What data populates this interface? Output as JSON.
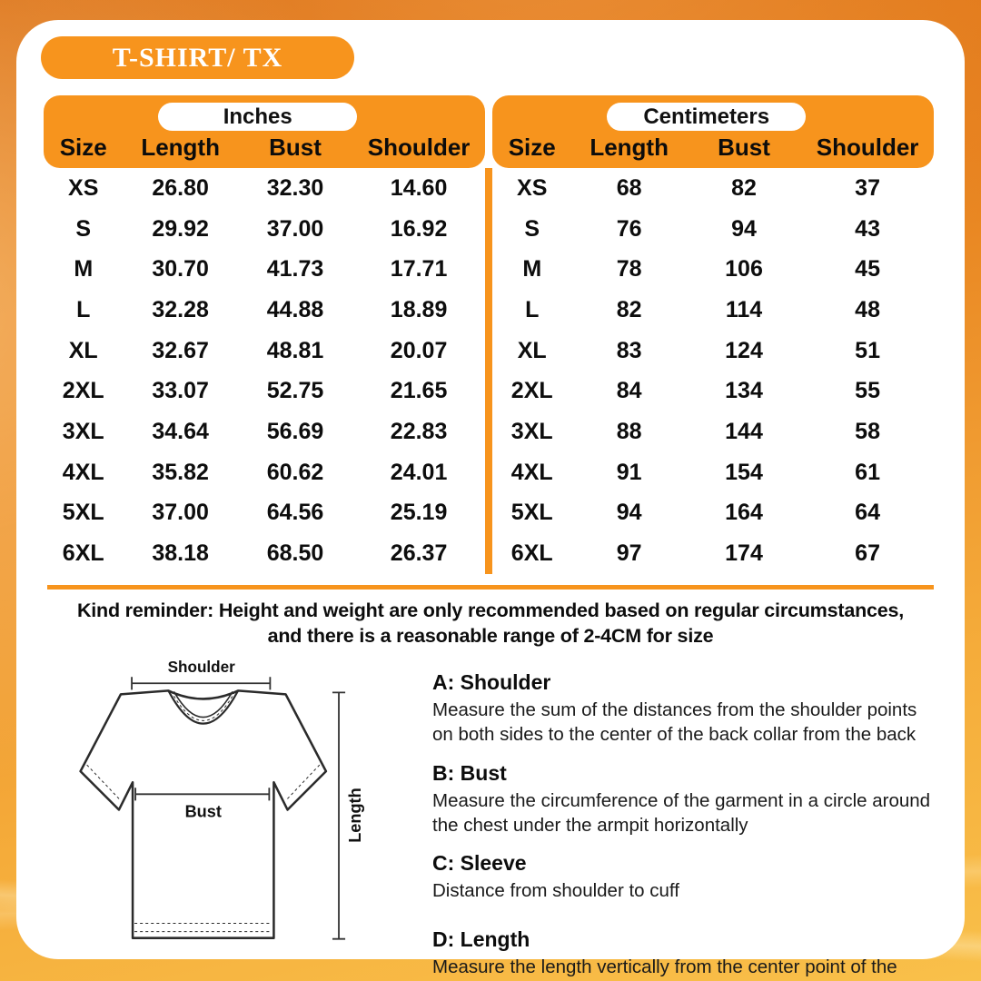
{
  "title": "T-SHIRT/ TX",
  "table": {
    "inches_label": "Inches",
    "cm_label": "Centimeters",
    "columns": [
      "Size",
      "Length",
      "Bust",
      "Shoulder"
    ],
    "inches_rows": [
      [
        "XS",
        "26.80",
        "32.30",
        "14.60"
      ],
      [
        "S",
        "29.92",
        "37.00",
        "16.92"
      ],
      [
        "M",
        "30.70",
        "41.73",
        "17.71"
      ],
      [
        "L",
        "32.28",
        "44.88",
        "18.89"
      ],
      [
        "XL",
        "32.67",
        "48.81",
        "20.07"
      ],
      [
        "2XL",
        "33.07",
        "52.75",
        "21.65"
      ],
      [
        "3XL",
        "34.64",
        "56.69",
        "22.83"
      ],
      [
        "4XL",
        "35.82",
        "60.62",
        "24.01"
      ],
      [
        "5XL",
        "37.00",
        "64.56",
        "25.19"
      ],
      [
        "6XL",
        "38.18",
        "68.50",
        "26.37"
      ]
    ],
    "cm_rows": [
      [
        "XS",
        "68",
        "82",
        "37"
      ],
      [
        "S",
        "76",
        "94",
        "43"
      ],
      [
        "M",
        "78",
        "106",
        "45"
      ],
      [
        "L",
        "82",
        "114",
        "48"
      ],
      [
        "XL",
        "83",
        "124",
        "51"
      ],
      [
        "2XL",
        "84",
        "134",
        "55"
      ],
      [
        "3XL",
        "88",
        "144",
        "58"
      ],
      [
        "4XL",
        "91",
        "154",
        "61"
      ],
      [
        "5XL",
        "94",
        "164",
        "64"
      ],
      [
        "6XL",
        "97",
        "174",
        "67"
      ]
    ]
  },
  "reminder": {
    "line1": "Kind reminder: Height and weight are only recommended based on regular circumstances,",
    "line2": "and there is a reasonable range of 2-4CM for size"
  },
  "diagram": {
    "shoulder_label": "Shoulder",
    "bust_label": "Bust",
    "length_label": "Length"
  },
  "guide": [
    {
      "heading": "A: Shoulder",
      "body": "Measure the sum of the distances from the shoulder points on both sides to the center of the back collar from the back"
    },
    {
      "heading": "B: Bust",
      "body": "Measure the circumference of the garment in a circle around the chest under the armpit horizontally"
    },
    {
      "heading": "C: Sleeve",
      "body": "Distance from shoulder to cuff"
    },
    {
      "heading": "D: Length",
      "body": "Measure the length vertically from the center point of the seam between the back collar and the garment to the edge of the hem"
    }
  ],
  "colors": {
    "accent": "#F7941D",
    "text": "#0d0d0d"
  }
}
